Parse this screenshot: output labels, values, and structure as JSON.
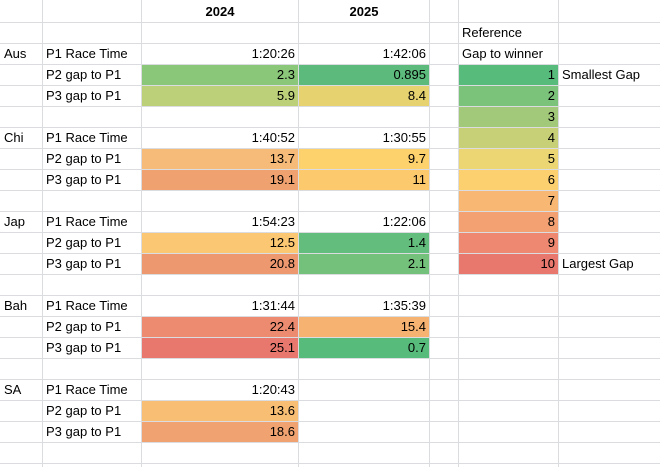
{
  "header": {
    "y2024": "2024",
    "y2025": "2025"
  },
  "sections": [
    {
      "country": "Aus",
      "rows": [
        {
          "label": "P1 Race Time",
          "v2024": "1:20:26",
          "v2025": "1:42:06"
        },
        {
          "label": "P2 gap to P1",
          "v2024": "2.3",
          "c2024": "#8ac778",
          "v2025": "0.895",
          "c2025": "#5cbb7c"
        },
        {
          "label": "P3 gap to P1",
          "v2024": "5.9",
          "c2024": "#bcd07a",
          "v2025": "8.4",
          "c2025": "#e6d370"
        }
      ]
    },
    {
      "country": "Chi",
      "rows": [
        {
          "label": "P1 Race Time",
          "v2024": "1:40:52",
          "v2025": "1:30:55"
        },
        {
          "label": "P2 gap to P1",
          "v2024": "13.7",
          "c2024": "#f6bb78",
          "v2025": "9.7",
          "c2025": "#fdd16c"
        },
        {
          "label": "P3 gap to P1",
          "v2024": "19.1",
          "c2024": "#f0a170",
          "v2025": "11",
          "c2025": "#fcc96c"
        }
      ]
    },
    {
      "country": "Jap",
      "rows": [
        {
          "label": "P1 Race Time",
          "v2024": "1:54:23",
          "v2025": "1:22:06"
        },
        {
          "label": "P2 gap to P1",
          "v2024": "12.5",
          "c2024": "#fbc772",
          "v2025": "1.4",
          "c2025": "#63bd7c"
        },
        {
          "label": "P3 gap to P1",
          "v2024": "20.8",
          "c2024": "#ee9870",
          "v2025": "2.1",
          "c2025": "#74c17c"
        }
      ]
    },
    {
      "country": "Bah",
      "rows": [
        {
          "label": "P1 Race Time",
          "v2024": "1:31:44",
          "v2025": "1:35:39"
        },
        {
          "label": "P2 gap to P1",
          "v2024": "22.4",
          "c2024": "#ec8b70",
          "v2025": "15.4",
          "c2025": "#f6b271"
        },
        {
          "label": "P3 gap to P1",
          "v2024": "25.1",
          "c2024": "#e8786e",
          "v2025": "0.7",
          "c2025": "#57bb7b"
        }
      ]
    },
    {
      "country": "SA",
      "rows": [
        {
          "label": "P1 Race Time",
          "v2024": "1:20:43",
          "v2025": ""
        },
        {
          "label": "P2 gap to P1",
          "v2024": "13.6",
          "c2024": "#f8be74",
          "v2025": ""
        },
        {
          "label": "P3 gap to P1",
          "v2024": "18.6",
          "c2024": "#f0a370",
          "v2025": ""
        }
      ]
    }
  ],
  "reference": {
    "title": "Reference",
    "subtitle": "Gap to winner",
    "scale": [
      {
        "value": "1",
        "color": "#57bb7b",
        "note": "Smallest Gap"
      },
      {
        "value": "2",
        "color": "#7bc27a",
        "note": ""
      },
      {
        "value": "3",
        "color": "#a2c979",
        "note": ""
      },
      {
        "value": "4",
        "color": "#c8d077",
        "note": ""
      },
      {
        "value": "5",
        "color": "#ecd673",
        "note": ""
      },
      {
        "value": "6",
        "color": "#fcd06e",
        "note": ""
      },
      {
        "value": "7",
        "color": "#f8b874",
        "note": ""
      },
      {
        "value": "8",
        "color": "#f3a072",
        "note": ""
      },
      {
        "value": "9",
        "color": "#ee8870",
        "note": ""
      },
      {
        "value": "10",
        "color": "#e8786e",
        "note": "Largest Gap"
      }
    ]
  }
}
